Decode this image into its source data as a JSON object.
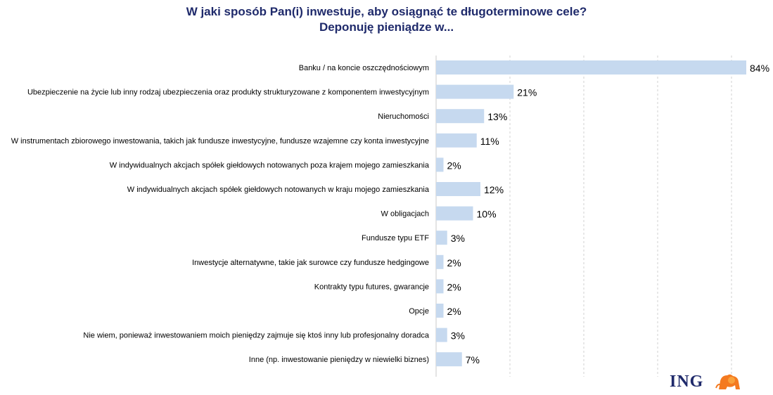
{
  "title": {
    "line1": "W jaki sposób Pan(i) inwestuje, aby osiągnąć te długoterminowe cele?",
    "line2": "Deponuję pieniądze w..."
  },
  "logo": {
    "text": "ING",
    "icon": "lion-icon"
  },
  "colors": {
    "bar": "#c6d9ef",
    "grid": "#d0d0d0",
    "title": "#1f2a6b",
    "lion": "#f47a20"
  },
  "chart_data": {
    "type": "bar",
    "orientation": "horizontal",
    "categories": [
      "Banku / na koncie oszczędnościowym",
      "Ubezpieczenie na życie lub inny rodzaj ubezpieczenia oraz produkty strukturyzowane z komponentem inwestycyjnym",
      "Nieruchomości",
      "W instrumentach zbiorowego inwestowania, takich jak fundusze inwestycyjne, fundusze wzajemne czy konta inwestycyjne",
      "W indywidualnych akcjach spółek giełdowych notowanych poza krajem mojego zamieszkania",
      "W indywidualnych akcjach spółek giełdowych notowanych w kraju mojego zamieszkania",
      "W  obligacjach",
      "Fundusze typu ETF",
      "Inwestycje alternatywne, takie jak surowce czy fundusze hedgingowe",
      "Kontrakty typu futures, gwarancje",
      "Opcje",
      "Nie wiem, ponieważ inwestowaniem moich pieniędzy zajmuje się ktoś inny lub profesjonalny doradca",
      "Inne (np. inwestowanie pieniędzy w niewielki biznes)"
    ],
    "values": [
      84,
      21,
      13,
      11,
      2,
      12,
      10,
      3,
      2,
      2,
      2,
      3,
      7
    ],
    "value_labels": [
      "84%",
      "21%",
      "13%",
      "11%",
      "2%",
      "12%",
      "10%",
      "3%",
      "2%",
      "2%",
      "2%",
      "3%",
      "7%"
    ],
    "unit": "%",
    "xlim": [
      0,
      100
    ],
    "grid": true,
    "legend": "none"
  }
}
